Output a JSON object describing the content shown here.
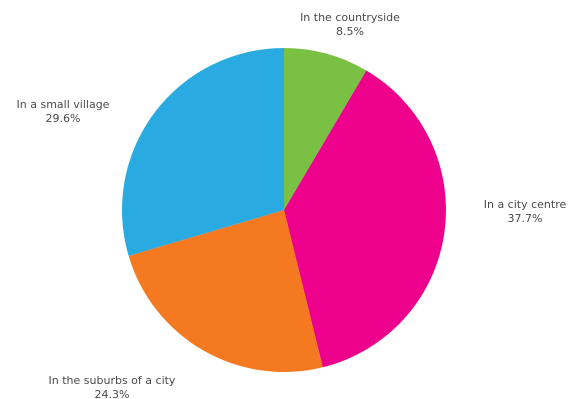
{
  "chart_data": {
    "type": "pie",
    "start_angle_deg": 0,
    "direction": "clockwise",
    "slices": [
      {
        "label": "In the countryside",
        "value": 8.5,
        "value_label": "8.5%",
        "color": "#7ac143"
      },
      {
        "label": "In a city centre",
        "value": 37.7,
        "value_label": "37.7%",
        "color": "#ec008c"
      },
      {
        "label": "In the suburbs of a city",
        "value": 24.3,
        "value_label": "24.3%",
        "color": "#f47920"
      },
      {
        "label": "In a small village",
        "value": 29.6,
        "value_label": "29.6%",
        "color": "#29abe2"
      }
    ]
  }
}
